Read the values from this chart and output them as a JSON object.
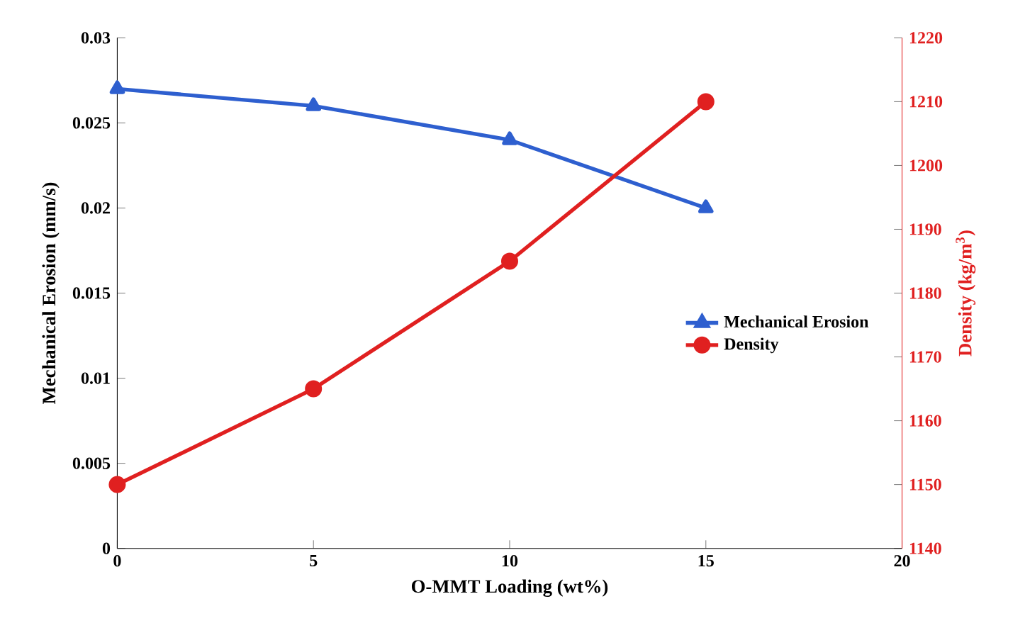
{
  "chart_data": {
    "type": "line",
    "xlabel": "O-MMT Loading (wt%)",
    "ylabel": "Mechanical Erosion (mm/s)",
    "y2label": "Density (kg/m$^{3}$)",
    "x": [
      0,
      5,
      10,
      15
    ],
    "series": [
      {
        "name": "Mechanical Erosion",
        "color": "#2e5fcf",
        "values": [
          0.027,
          0.026,
          0.024,
          0.02
        ],
        "marker": "triangle"
      },
      {
        "name": "Density",
        "color": "#e02020",
        "values": [
          1150,
          1165,
          1185,
          1210
        ],
        "marker": "circle",
        "axis": "y2"
      }
    ],
    "xlim": [
      0,
      20
    ],
    "xticks": [
      0,
      5,
      10,
      15,
      20
    ],
    "ylim": [
      0,
      0.03
    ],
    "yticks": [
      0,
      0.005,
      0.01,
      0.015,
      0.02,
      0.025,
      0.03
    ],
    "y2lim": [
      1140,
      1220
    ],
    "y2ticks": [
      1140,
      1150,
      1160,
      1170,
      1180,
      1190,
      1200,
      1210,
      1220
    ],
    "legend": "right",
    "line_style": "solid",
    "grid": false
  }
}
